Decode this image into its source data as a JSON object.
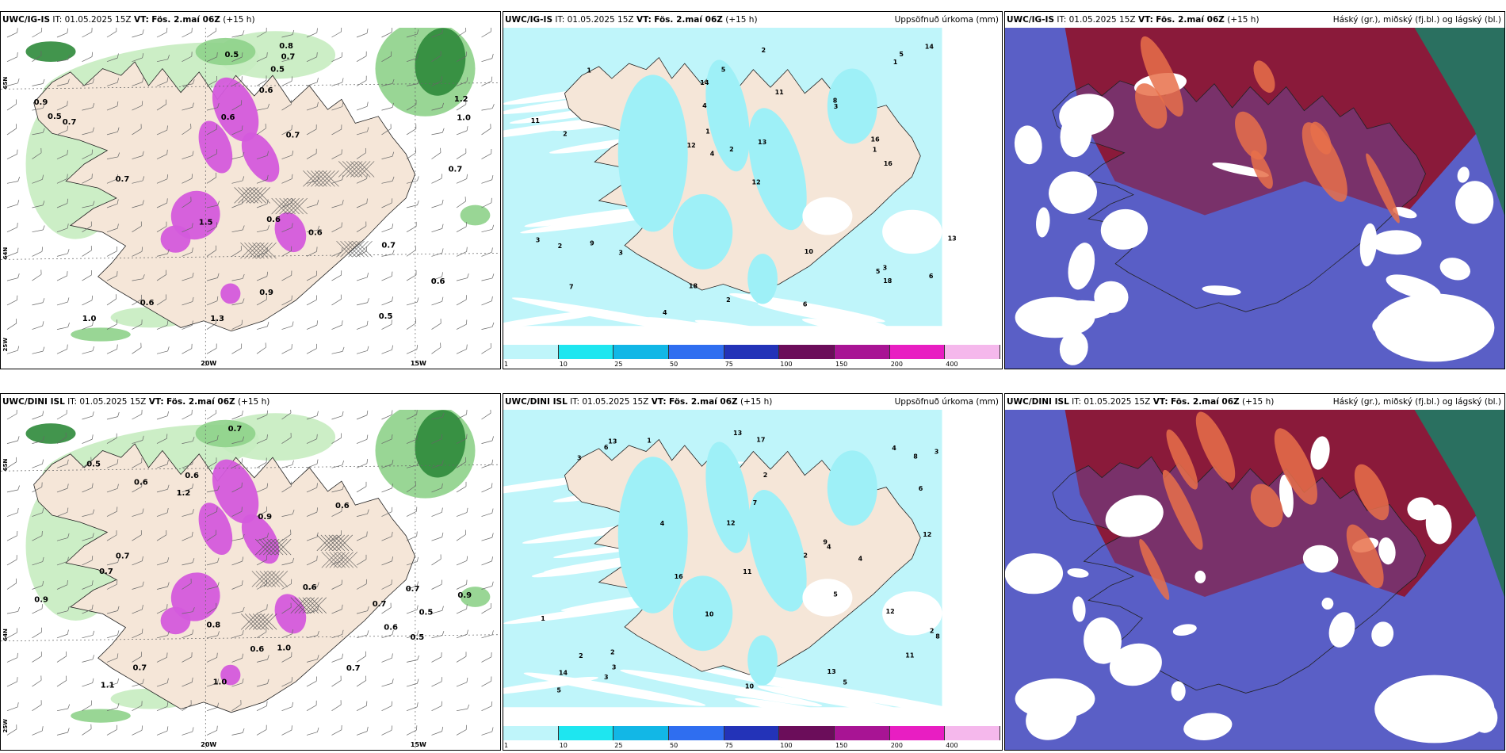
{
  "rows": [
    {
      "panels": [
        {
          "model": "UWC/IG-IS",
          "it": "IT: 01.05.2025 15Z",
          "vt_label": "VT:",
          "vt": "Fös. 2.maí 06Z",
          "lead": "(+15 h)",
          "legend": "",
          "kind": "wind",
          "lon_labels": [
            "20W",
            "15W"
          ],
          "lat_labels": [
            "65N",
            "64N",
            "25W"
          ],
          "values": [
            "0.6",
            "0.7",
            "0.6",
            "0.6",
            "0.5",
            "0.7",
            "1.3",
            "0.7",
            "0.5",
            "1.5",
            "0.6",
            "1.0",
            "0.5",
            "0.7",
            "0.9",
            "1.0",
            "0.8",
            "0.7",
            "0.6",
            "0.5",
            "0.6",
            "1.2",
            "0.7",
            "0.9"
          ]
        },
        {
          "model": "UWC/IG-IS",
          "it": "IT: 01.05.2025 15Z",
          "vt_label": "VT:",
          "vt": "Fös. 2.maí 06Z",
          "lead": "(+15 h)",
          "legend": "Uppsöfnuð úrkoma (mm)",
          "kind": "precip",
          "values": [
            "3",
            "2",
            "4",
            "1",
            "3",
            "2",
            "5",
            "11",
            "9",
            "12",
            "10",
            "13",
            "16",
            "18",
            "14",
            "5",
            "7",
            "4",
            "6",
            "1",
            "2",
            "3",
            "18",
            "8",
            "11",
            "12",
            "14",
            "16",
            "13",
            "1",
            "2",
            "3",
            "1",
            "2",
            "5",
            "4",
            "6"
          ]
        },
        {
          "model": "UWC/IG-IS",
          "it": "IT: 01.05.2025 15Z",
          "vt_label": "VT:",
          "vt": "Fös. 2.maí 06Z",
          "lead": "(+15 h)",
          "legend": "Háský (gr.), miðský (fj.bl.) og lágský (bl.)",
          "kind": "cloud"
        }
      ]
    },
    {
      "panels": [
        {
          "model": "UWC/DINI ISL",
          "it": "IT: 01.05.2025 15Z",
          "vt_label": "VT:",
          "vt": "Fös. 2.maí 06Z",
          "lead": "(+15 h)",
          "legend": "",
          "kind": "wind",
          "lon_labels": [
            "20W",
            "15W"
          ],
          "lat_labels": [
            "65N",
            "64N",
            "25W"
          ],
          "values": [
            "0.6",
            "0.7",
            "0.6",
            "1.2",
            "0.7",
            "0.5",
            "0.9",
            "1.0",
            "0.7",
            "0.6",
            "0.8",
            "0.5",
            "0.7",
            "0.9",
            "1.0",
            "0.6",
            "0.7",
            "1.1",
            "0.6",
            "0.5",
            "0.7",
            "0.9",
            "0.7",
            "0.6"
          ]
        },
        {
          "model": "UWC/DINI ISL",
          "it": "IT: 01.05.2025 15Z",
          "vt_label": "VT:",
          "vt": "Fös. 2.maí 06Z",
          "lead": "(+15 h)",
          "legend": "Uppsöfnuð úrkoma (mm)",
          "kind": "precip",
          "values": [
            "4",
            "5",
            "3",
            "2",
            "6",
            "4",
            "12",
            "11",
            "10",
            "9",
            "8",
            "13",
            "17",
            "12",
            "11",
            "13",
            "5",
            "4",
            "7",
            "2",
            "3",
            "16",
            "12",
            "14",
            "13",
            "10",
            "8",
            "1",
            "2",
            "3",
            "5",
            "4",
            "2",
            "6",
            "3",
            "1",
            "2"
          ]
        },
        {
          "model": "UWC/DINI ISL",
          "it": "IT: 01.05.2025 15Z",
          "vt_label": "VT:",
          "vt": "Fös. 2.maí 06Z",
          "lead": "(+15 h)",
          "legend": "Háský (gr.), miðský (fj.bl.) og lágský (bl.)",
          "kind": "cloud"
        }
      ]
    }
  ],
  "precip_scale": {
    "ticks": [
      "1",
      "10",
      "25",
      "50",
      "75",
      "100",
      "150",
      "200",
      "400"
    ],
    "colors": [
      "#bff5fa",
      "#1ee6f0",
      "#12b7e6",
      "#2f6ef0",
      "#2333b8",
      "#6b0d5a",
      "#a81494",
      "#e81ec2",
      "#f5b8ec"
    ]
  },
  "colors": {
    "land": "#f5e6d8",
    "precip_light": "#bff5fa",
    "precip_mid": "#9ef0f7",
    "wind_green_light": "#c6ecc0",
    "wind_green_mid": "#8ed28a",
    "wind_green_dark": "#2e8a3a",
    "wind_magenta": "#d45adc",
    "cloud_high": "#8a1a3a",
    "cloud_mid": "#5a5fc6",
    "cloud_low": "#ffffff",
    "cloud_sea": "#2a7060"
  }
}
